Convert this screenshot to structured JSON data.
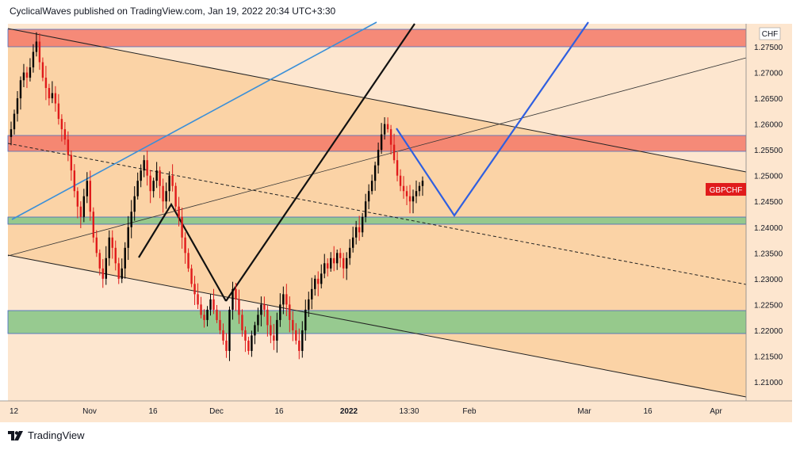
{
  "header": {
    "published_line": "CyclicalWaves published on TradingView.com, Jan 19, 2022 20:34 UTC+3:30"
  },
  "footer": {
    "brand": "TradingView",
    "logo_icon": "tradingview-logo-icon"
  },
  "chart_data": {
    "type": "candlestick",
    "symbol": "GBPCHF",
    "currency_label": "CHF",
    "last_price_label": "GBPCHF",
    "y_ticks": [
      "1.27500",
      "1.27000",
      "1.26500",
      "1.26000",
      "1.25500",
      "1.25000",
      "1.24500",
      "1.24000",
      "1.23500",
      "1.23000",
      "1.22500",
      "1.22000",
      "1.21500",
      "1.21000"
    ],
    "x_ticks": [
      "12",
      "Nov",
      "16",
      "Dec",
      "16",
      "2022",
      "13:30",
      "Feb",
      "Mar",
      "16",
      "Apr"
    ],
    "ylim": [
      1.2055,
      1.2785
    ],
    "grid": false,
    "colors": {
      "up_candle": "#000000",
      "down_candle": "#e01b1b",
      "supply_zone": "#f47a6a",
      "demand_zone": "#8cc88a",
      "channel_fill": "#fbd3a6",
      "projection_line": "#2f5fe0",
      "trend_line": "#000000",
      "last_price_badge": "#e01b1b",
      "bg": "#fde6cf"
    },
    "zones": [
      {
        "name": "",
        "kind": "supply",
        "y_from": 1.2749,
        "y_to": 1.2783
      },
      {
        "name": "",
        "kind": "supply",
        "y_from": 1.2548,
        "y_to": 1.2578
      },
      {
        "name": "",
        "kind": "demand",
        "y_from": 1.2408,
        "y_to": 1.242
      },
      {
        "name": "",
        "kind": "demand",
        "y_from": 1.2193,
        "y_to": 1.2237
      }
    ],
    "candles_ohlc_series": [
      1.259,
      1.262,
      1.265,
      1.2685,
      1.27,
      1.269,
      1.271,
      1.274,
      1.276,
      1.272,
      1.269,
      1.267,
      1.265,
      1.266,
      1.264,
      1.261,
      1.259,
      1.257,
      1.254,
      1.251,
      1.247,
      1.244,
      1.242,
      1.246,
      1.249,
      1.243,
      1.238,
      1.235,
      1.232,
      1.23,
      1.234,
      1.238,
      1.236,
      1.233,
      1.23,
      1.232,
      1.236,
      1.24,
      1.243,
      1.246,
      1.249,
      1.251,
      1.253,
      1.25,
      1.247,
      1.249,
      1.251,
      1.248,
      1.245,
      1.247,
      1.25,
      1.248,
      1.244,
      1.242,
      1.238,
      1.235,
      1.232,
      1.229,
      1.227,
      1.225,
      1.223,
      1.222,
      1.224,
      1.226,
      1.224,
      1.222,
      1.22,
      1.218,
      1.216,
      1.224,
      1.228,
      1.226,
      1.223,
      1.22,
      1.218,
      1.216,
      1.219,
      1.221,
      1.223,
      1.225,
      1.224,
      1.221,
      1.219,
      1.218,
      1.222,
      1.225,
      1.227,
      1.225,
      1.222,
      1.22,
      1.218,
      1.216,
      1.22,
      1.224,
      1.226,
      1.228,
      1.23,
      1.229,
      1.231,
      1.233,
      1.232,
      1.234,
      1.233,
      1.235,
      1.234,
      1.232,
      1.234,
      1.236,
      1.238,
      1.24,
      1.239,
      1.242,
      1.245,
      1.247,
      1.249,
      1.252,
      1.255,
      1.258,
      1.26,
      1.259,
      1.256,
      1.253,
      1.25,
      1.248,
      1.247,
      1.246,
      1.245,
      1.246,
      1.247,
      1.248,
      1.249
    ]
  }
}
